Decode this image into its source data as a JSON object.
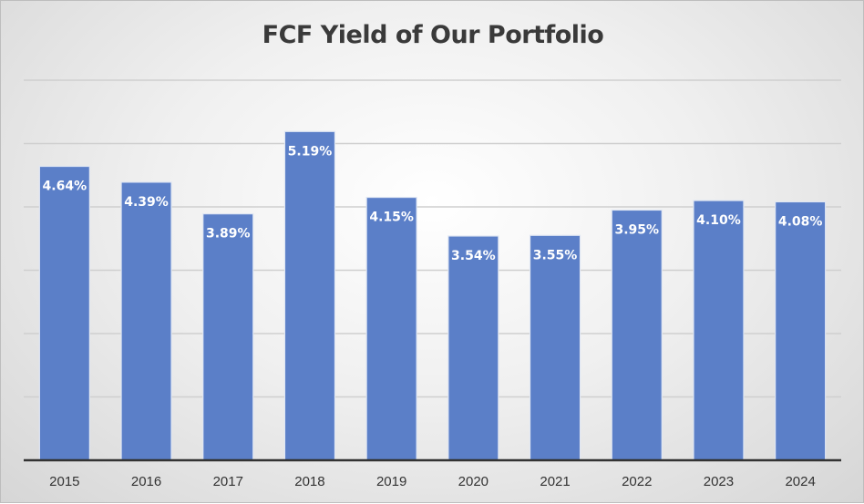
{
  "chart_data": {
    "type": "bar",
    "title": "FCF Yield of Our Portfolio",
    "categories": [
      "2015",
      "2016",
      "2017",
      "2018",
      "2019",
      "2020",
      "2021",
      "2022",
      "2023",
      "2024"
    ],
    "values": [
      4.64,
      4.39,
      3.89,
      5.19,
      4.15,
      3.54,
      3.55,
      3.95,
      4.1,
      4.08
    ],
    "data_labels": [
      "4.64%",
      "4.39%",
      "3.89%",
      "5.19%",
      "4.15%",
      "3.54%",
      "3.55%",
      "3.95%",
      "4.10%",
      "4.08%"
    ],
    "xlabel": "",
    "ylabel": "",
    "ylim": [
      0,
      6
    ],
    "y_gridline_step": 1,
    "y_tick_labels_shown": false,
    "grid": true,
    "legend": "none",
    "colors": {
      "bar": "#5b7fc8",
      "bar_border": "#dfe6f3",
      "grid": "#cfcfcf",
      "axis": "#333333",
      "label": "#ffffff"
    }
  }
}
